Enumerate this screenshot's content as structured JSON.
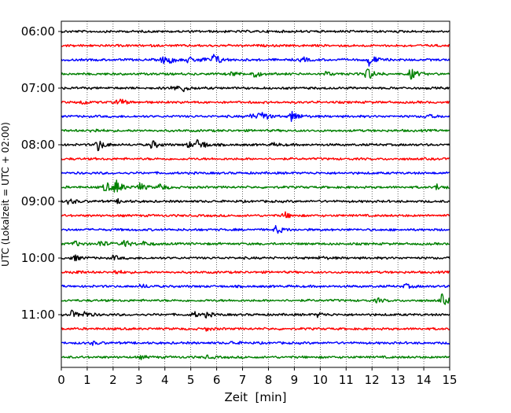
{
  "chart_data": {
    "type": "line",
    "title": "",
    "xlabel": "Zeit  [min]",
    "ylabel": "UTC (Lokalzeit = UTC + 02:00)",
    "xlim": [
      0,
      15
    ],
    "xticks": [
      0,
      1,
      2,
      3,
      4,
      5,
      6,
      7,
      8,
      9,
      10,
      11,
      12,
      13,
      14,
      15
    ],
    "grid": "vertical dotted lines at each minute",
    "ytick_labels": [
      "06:00",
      "07:00",
      "08:00",
      "09:00",
      "10:00",
      "11:00"
    ],
    "trace_colors": [
      "#000000",
      "#ff0000",
      "#0000ff",
      "#008000"
    ],
    "traces": [
      {
        "start": "06:00",
        "events": []
      },
      {
        "start": "06:15",
        "events": []
      },
      {
        "start": "06:30",
        "events": [
          {
            "t": 3.9,
            "amp": 0.5
          },
          {
            "t": 4.2,
            "amp": 0.35
          },
          {
            "t": 4.9,
            "amp": 0.4
          },
          {
            "t": 5.4,
            "amp": 0.3
          },
          {
            "t": 5.9,
            "amp": 0.9
          },
          {
            "t": 9.3,
            "amp": 0.35
          },
          {
            "t": 11.9,
            "amp": 0.9
          }
        ]
      },
      {
        "start": "06:45",
        "events": [
          {
            "t": 6.6,
            "amp": 0.3
          },
          {
            "t": 7.4,
            "amp": 0.6
          },
          {
            "t": 10.2,
            "amp": 0.3
          },
          {
            "t": 11.8,
            "amp": 1.0
          },
          {
            "t": 13.5,
            "amp": 0.8
          }
        ]
      },
      {
        "start": "07:00",
        "events": [
          {
            "t": 4.3,
            "amp": 0.4
          },
          {
            "t": 4.7,
            "amp": 0.4
          }
        ]
      },
      {
        "start": "07:15",
        "events": [
          {
            "t": 0.8,
            "amp": 0.3
          },
          {
            "t": 2.2,
            "amp": 0.6
          }
        ]
      },
      {
        "start": "07:30",
        "events": [
          {
            "t": 7.3,
            "amp": 0.4
          },
          {
            "t": 7.7,
            "amp": 0.9
          },
          {
            "t": 8.9,
            "amp": 0.9
          },
          {
            "t": 14.1,
            "amp": 0.3
          }
        ]
      },
      {
        "start": "07:45",
        "events": [
          {
            "t": 1.2,
            "amp": 0.3
          }
        ]
      },
      {
        "start": "08:00",
        "events": [
          {
            "t": 1.4,
            "amp": 0.9
          },
          {
            "t": 3.5,
            "amp": 0.6
          },
          {
            "t": 5.3,
            "amp": 0.9
          },
          {
            "t": 4.9,
            "amp": 0.4
          },
          {
            "t": 8.2,
            "amp": 0.2
          }
        ]
      },
      {
        "start": "08:15",
        "events": []
      },
      {
        "start": "08:30",
        "events": []
      },
      {
        "start": "08:45",
        "events": [
          {
            "t": 1.7,
            "amp": 0.8
          },
          {
            "t": 2.1,
            "amp": 1.0
          },
          {
            "t": 3.0,
            "amp": 0.6
          },
          {
            "t": 3.8,
            "amp": 0.5
          },
          {
            "t": 14.5,
            "amp": 0.4
          }
        ]
      },
      {
        "start": "09:00",
        "events": [
          {
            "t": 0.3,
            "amp": 0.4
          },
          {
            "t": 2.2,
            "amp": 0.25
          }
        ]
      },
      {
        "start": "09:15",
        "events": [
          {
            "t": 8.6,
            "amp": 0.5
          }
        ]
      },
      {
        "start": "09:30",
        "events": [
          {
            "t": 8.3,
            "amp": 0.6
          }
        ]
      },
      {
        "start": "09:45",
        "events": [
          {
            "t": 0.5,
            "amp": 0.4
          },
          {
            "t": 1.5,
            "amp": 0.5
          },
          {
            "t": 2.4,
            "amp": 0.6
          },
          {
            "t": 3.2,
            "amp": 0.3
          }
        ]
      },
      {
        "start": "10:00",
        "events": [
          {
            "t": 0.45,
            "amp": 0.5
          },
          {
            "t": 2.0,
            "amp": 0.3
          },
          {
            "t": 10.0,
            "amp": 0.2
          }
        ]
      },
      {
        "start": "10:15",
        "events": [
          {
            "t": 0.5,
            "amp": 0.3
          },
          {
            "t": 2.1,
            "amp": 0.3
          }
        ]
      },
      {
        "start": "10:30",
        "events": [
          {
            "t": 3.1,
            "amp": 0.3
          },
          {
            "t": 13.3,
            "amp": 0.3
          }
        ]
      },
      {
        "start": "10:45",
        "events": [
          {
            "t": 12.2,
            "amp": 0.3
          },
          {
            "t": 14.7,
            "amp": 0.8
          }
        ]
      },
      {
        "start": "11:00",
        "events": [
          {
            "t": 0.4,
            "amp": 0.5
          },
          {
            "t": 0.9,
            "amp": 0.4
          },
          {
            "t": 5.1,
            "amp": 0.4
          },
          {
            "t": 5.6,
            "amp": 0.3
          },
          {
            "t": 9.9,
            "amp": 0.3
          }
        ]
      },
      {
        "start": "11:15",
        "events": [
          {
            "t": 5.6,
            "amp": 0.2
          }
        ]
      },
      {
        "start": "11:30",
        "events": [
          {
            "t": 1.2,
            "amp": 0.2
          },
          {
            "t": 6.6,
            "amp": 0.2
          }
        ]
      },
      {
        "start": "11:45",
        "events": [
          {
            "t": 3.1,
            "amp": 0.2
          },
          {
            "t": 5.6,
            "amp": 0.2
          }
        ]
      }
    ]
  }
}
